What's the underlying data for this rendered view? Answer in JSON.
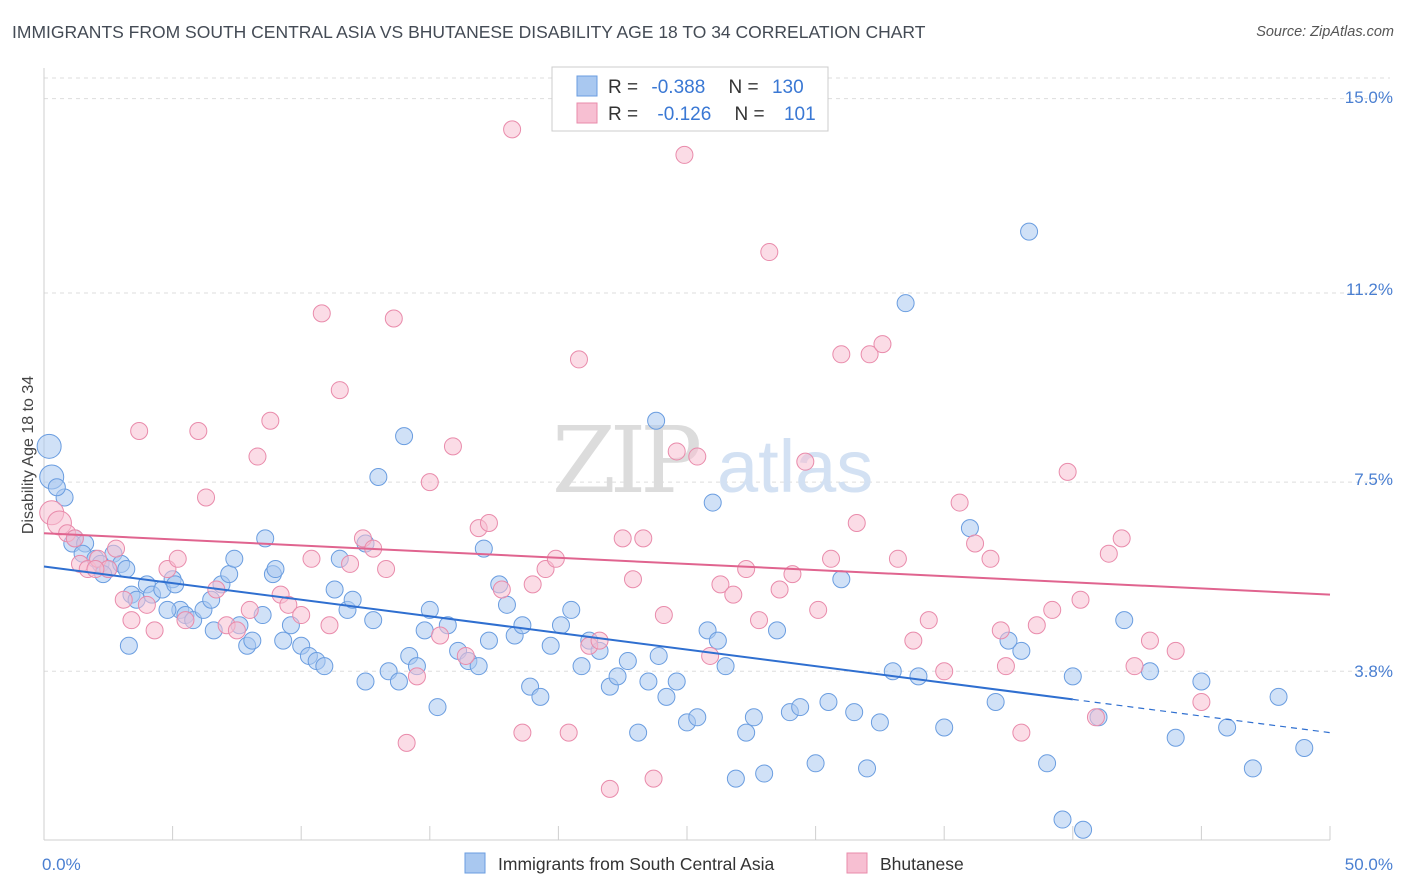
{
  "header": {
    "title": "IMMIGRANTS FROM SOUTH CENTRAL ASIA VS BHUTANESE DISABILITY AGE 18 TO 34 CORRELATION CHART",
    "source": "Source: ZipAtlas.com"
  },
  "watermark": {
    "zip": "ZIP",
    "atlas": "atlas"
  },
  "legend": {
    "rows": [
      {
        "r_label": "R =",
        "r_value": "-0.388",
        "n_label": "N =",
        "n_value": "130"
      },
      {
        "r_label": "R =",
        "r_value": "-0.126",
        "n_label": "N =",
        "n_value": "101"
      }
    ]
  },
  "colors": {
    "blue_fill": "#a9c8f0",
    "blue_stroke": "#6a9de0",
    "blue_line": "#2f6fd0",
    "pink_fill": "#f7bfd2",
    "pink_stroke": "#e98bab",
    "pink_line": "#e0648f",
    "tick_text": "#4a7fd1",
    "grid": "#dddddd"
  },
  "chart_data": {
    "type": "scatter",
    "title": "IMMIGRANTS FROM SOUTH CENTRAL ASIA VS BHUTANESE DISABILITY AGE 18 TO 34 CORRELATION CHART",
    "xlabel": "",
    "ylabel": "Disability Age 18 to 34",
    "xlim": [
      0,
      50
    ],
    "ylim": [
      0.5,
      15.6
    ],
    "x_tick_labels": [
      "0.0%",
      "50.0%"
    ],
    "y_ticks": [
      3.8,
      7.5,
      11.2,
      15.0
    ],
    "y_tick_labels": [
      "3.8%",
      "7.5%",
      "11.2%",
      "15.0%"
    ],
    "grid": "horizontal dashed",
    "legend_position": "top-center",
    "series": [
      {
        "name": "Immigrants from South Central Asia",
        "r": -0.388,
        "n": 130,
        "trend": {
          "x0": 0,
          "y0": 5.85,
          "x1": 40,
          "y1": 3.25,
          "dashed_to": 50,
          "dashed_y": 2.6
        },
        "points": [
          [
            0.2,
            8.2
          ],
          [
            0.3,
            7.6
          ],
          [
            0.8,
            7.2
          ],
          [
            0.5,
            7.4
          ],
          [
            1.2,
            6.4
          ],
          [
            1.1,
            6.3
          ],
          [
            1.6,
            6.3
          ],
          [
            1.5,
            6.1
          ],
          [
            2.0,
            6.0
          ],
          [
            2.2,
            5.9
          ],
          [
            2.5,
            5.8
          ],
          [
            2.7,
            6.1
          ],
          [
            2.3,
            5.7
          ],
          [
            3.0,
            5.9
          ],
          [
            3.2,
            5.8
          ],
          [
            3.4,
            5.3
          ],
          [
            3.6,
            5.2
          ],
          [
            4.0,
            5.5
          ],
          [
            4.2,
            5.3
          ],
          [
            4.6,
            5.4
          ],
          [
            5.0,
            5.6
          ],
          [
            5.1,
            5.5
          ],
          [
            5.3,
            5.0
          ],
          [
            5.5,
            4.9
          ],
          [
            5.8,
            4.8
          ],
          [
            6.2,
            5.0
          ],
          [
            6.5,
            5.2
          ],
          [
            6.9,
            5.5
          ],
          [
            7.2,
            5.7
          ],
          [
            7.4,
            6.0
          ],
          [
            7.6,
            4.7
          ],
          [
            7.9,
            4.3
          ],
          [
            8.1,
            4.4
          ],
          [
            8.5,
            4.9
          ],
          [
            8.9,
            5.7
          ],
          [
            9.0,
            5.8
          ],
          [
            9.3,
            4.4
          ],
          [
            9.6,
            4.7
          ],
          [
            10.0,
            4.3
          ],
          [
            10.3,
            4.1
          ],
          [
            10.6,
            4.0
          ],
          [
            10.9,
            3.9
          ],
          [
            11.3,
            5.4
          ],
          [
            11.5,
            6.0
          ],
          [
            11.8,
            5.0
          ],
          [
            12.0,
            5.2
          ],
          [
            12.5,
            3.6
          ],
          [
            12.8,
            4.8
          ],
          [
            13.4,
            3.8
          ],
          [
            13.8,
            3.6
          ],
          [
            14.2,
            4.1
          ],
          [
            14.5,
            3.9
          ],
          [
            14.8,
            4.6
          ],
          [
            15.0,
            5.0
          ],
          [
            15.3,
            3.1
          ],
          [
            15.7,
            4.7
          ],
          [
            16.1,
            4.2
          ],
          [
            16.5,
            4.0
          ],
          [
            16.9,
            3.9
          ],
          [
            17.3,
            4.4
          ],
          [
            17.7,
            5.5
          ],
          [
            18.0,
            5.1
          ],
          [
            18.3,
            4.5
          ],
          [
            18.6,
            4.7
          ],
          [
            18.9,
            3.5
          ],
          [
            19.3,
            3.3
          ],
          [
            19.7,
            4.3
          ],
          [
            20.1,
            4.7
          ],
          [
            20.5,
            5.0
          ],
          [
            20.9,
            3.9
          ],
          [
            21.2,
            4.4
          ],
          [
            21.6,
            4.2
          ],
          [
            22.0,
            3.5
          ],
          [
            22.3,
            3.7
          ],
          [
            22.7,
            4.0
          ],
          [
            23.1,
            2.6
          ],
          [
            23.5,
            3.6
          ],
          [
            23.9,
            4.1
          ],
          [
            24.2,
            3.3
          ],
          [
            24.6,
            3.6
          ],
          [
            25.0,
            2.8
          ],
          [
            25.4,
            2.9
          ],
          [
            25.8,
            4.6
          ],
          [
            26.2,
            4.4
          ],
          [
            26.5,
            3.9
          ],
          [
            26.9,
            1.7
          ],
          [
            27.3,
            2.6
          ],
          [
            27.6,
            2.9
          ],
          [
            28.0,
            1.8
          ],
          [
            28.5,
            4.6
          ],
          [
            29.0,
            3.0
          ],
          [
            29.4,
            3.1
          ],
          [
            30.0,
            2.0
          ],
          [
            30.5,
            3.2
          ],
          [
            31.0,
            5.6
          ],
          [
            31.5,
            3.0
          ],
          [
            32.0,
            1.9
          ],
          [
            32.5,
            2.8
          ],
          [
            33.0,
            3.8
          ],
          [
            33.5,
            11.0
          ],
          [
            34.0,
            3.7
          ],
          [
            35.0,
            2.7
          ],
          [
            36.0,
            6.6
          ],
          [
            37.0,
            3.2
          ],
          [
            38.0,
            4.2
          ],
          [
            39.0,
            2.0
          ],
          [
            40.0,
            3.7
          ],
          [
            41.0,
            2.9
          ],
          [
            42.0,
            4.8
          ],
          [
            43.0,
            3.8
          ],
          [
            44.0,
            2.5
          ],
          [
            45.0,
            3.6
          ],
          [
            46.0,
            2.7
          ],
          [
            47.0,
            1.9
          ],
          [
            48.0,
            3.3
          ],
          [
            49.0,
            2.3
          ],
          [
            37.5,
            4.4
          ],
          [
            38.3,
            12.4
          ],
          [
            39.6,
            0.9
          ],
          [
            40.4,
            0.7
          ],
          [
            14.0,
            8.4
          ],
          [
            23.8,
            8.7
          ],
          [
            13.0,
            7.6
          ],
          [
            17.1,
            6.2
          ],
          [
            12.5,
            6.3
          ],
          [
            26.0,
            7.1
          ],
          [
            8.6,
            6.4
          ],
          [
            6.6,
            4.6
          ],
          [
            4.8,
            5.0
          ],
          [
            3.3,
            4.3
          ]
        ]
      },
      {
        "name": "Bhutanese",
        "r": -0.126,
        "n": 101,
        "trend": {
          "x0": 0,
          "y0": 6.5,
          "x1": 50,
          "y1": 5.3
        },
        "points": [
          [
            0.3,
            6.9
          ],
          [
            0.6,
            6.7
          ],
          [
            0.9,
            6.5
          ],
          [
            1.2,
            6.4
          ],
          [
            1.4,
            5.9
          ],
          [
            1.7,
            5.8
          ],
          [
            2.1,
            6.0
          ],
          [
            2.5,
            5.8
          ],
          [
            2.8,
            6.2
          ],
          [
            3.1,
            5.2
          ],
          [
            3.4,
            4.8
          ],
          [
            4.0,
            5.1
          ],
          [
            4.3,
            4.6
          ],
          [
            4.8,
            5.8
          ],
          [
            5.2,
            6.0
          ],
          [
            5.5,
            4.8
          ],
          [
            6.0,
            8.5
          ],
          [
            6.3,
            7.2
          ],
          [
            6.7,
            5.4
          ],
          [
            7.1,
            4.7
          ],
          [
            7.5,
            4.6
          ],
          [
            8.0,
            5.0
          ],
          [
            8.3,
            8.0
          ],
          [
            8.8,
            8.7
          ],
          [
            9.2,
            5.3
          ],
          [
            9.5,
            5.1
          ],
          [
            10.0,
            4.9
          ],
          [
            10.4,
            6.0
          ],
          [
            10.8,
            10.8
          ],
          [
            11.1,
            4.7
          ],
          [
            11.5,
            9.3
          ],
          [
            11.9,
            5.9
          ],
          [
            12.4,
            6.4
          ],
          [
            12.8,
            6.2
          ],
          [
            13.3,
            5.8
          ],
          [
            13.6,
            10.7
          ],
          [
            14.1,
            2.4
          ],
          [
            14.5,
            3.7
          ],
          [
            15.0,
            7.5
          ],
          [
            15.4,
            4.5
          ],
          [
            15.9,
            8.2
          ],
          [
            16.4,
            4.1
          ],
          [
            16.9,
            6.6
          ],
          [
            17.3,
            6.7
          ],
          [
            17.8,
            5.4
          ],
          [
            18.2,
            14.4
          ],
          [
            18.6,
            2.6
          ],
          [
            19.0,
            5.5
          ],
          [
            19.5,
            5.8
          ],
          [
            19.9,
            6.0
          ],
          [
            20.4,
            2.6
          ],
          [
            20.8,
            9.9
          ],
          [
            21.2,
            4.3
          ],
          [
            21.6,
            4.4
          ],
          [
            22.0,
            1.5
          ],
          [
            22.5,
            6.4
          ],
          [
            22.9,
            5.6
          ],
          [
            23.3,
            6.4
          ],
          [
            23.7,
            1.7
          ],
          [
            24.1,
            4.9
          ],
          [
            24.6,
            8.1
          ],
          [
            24.9,
            13.9
          ],
          [
            25.4,
            8.0
          ],
          [
            25.9,
            4.1
          ],
          [
            26.3,
            5.5
          ],
          [
            26.8,
            5.3
          ],
          [
            27.3,
            5.8
          ],
          [
            27.8,
            4.8
          ],
          [
            28.2,
            12.0
          ],
          [
            28.6,
            5.4
          ],
          [
            29.1,
            5.7
          ],
          [
            29.6,
            7.9
          ],
          [
            30.1,
            5.0
          ],
          [
            30.6,
            6.0
          ],
          [
            31.0,
            10.0
          ],
          [
            31.6,
            6.7
          ],
          [
            32.1,
            10.0
          ],
          [
            32.6,
            10.2
          ],
          [
            33.2,
            6.0
          ],
          [
            33.8,
            4.4
          ],
          [
            34.4,
            4.8
          ],
          [
            35.0,
            3.8
          ],
          [
            35.6,
            7.1
          ],
          [
            36.2,
            6.3
          ],
          [
            36.8,
            6.0
          ],
          [
            37.4,
            3.9
          ],
          [
            38.0,
            2.6
          ],
          [
            38.6,
            4.7
          ],
          [
            39.2,
            5.0
          ],
          [
            39.8,
            7.7
          ],
          [
            40.3,
            5.2
          ],
          [
            40.9,
            2.9
          ],
          [
            41.4,
            6.1
          ],
          [
            41.9,
            6.4
          ],
          [
            42.4,
            3.9
          ],
          [
            43.0,
            4.4
          ],
          [
            44.0,
            4.2
          ],
          [
            45.0,
            3.2
          ],
          [
            37.2,
            4.6
          ],
          [
            3.7,
            8.5
          ],
          [
            2.0,
            5.8
          ]
        ]
      }
    ]
  },
  "bottom_legend": {
    "items": [
      {
        "label": "Immigrants from South Central Asia"
      },
      {
        "label": "Bhutanese"
      }
    ]
  }
}
